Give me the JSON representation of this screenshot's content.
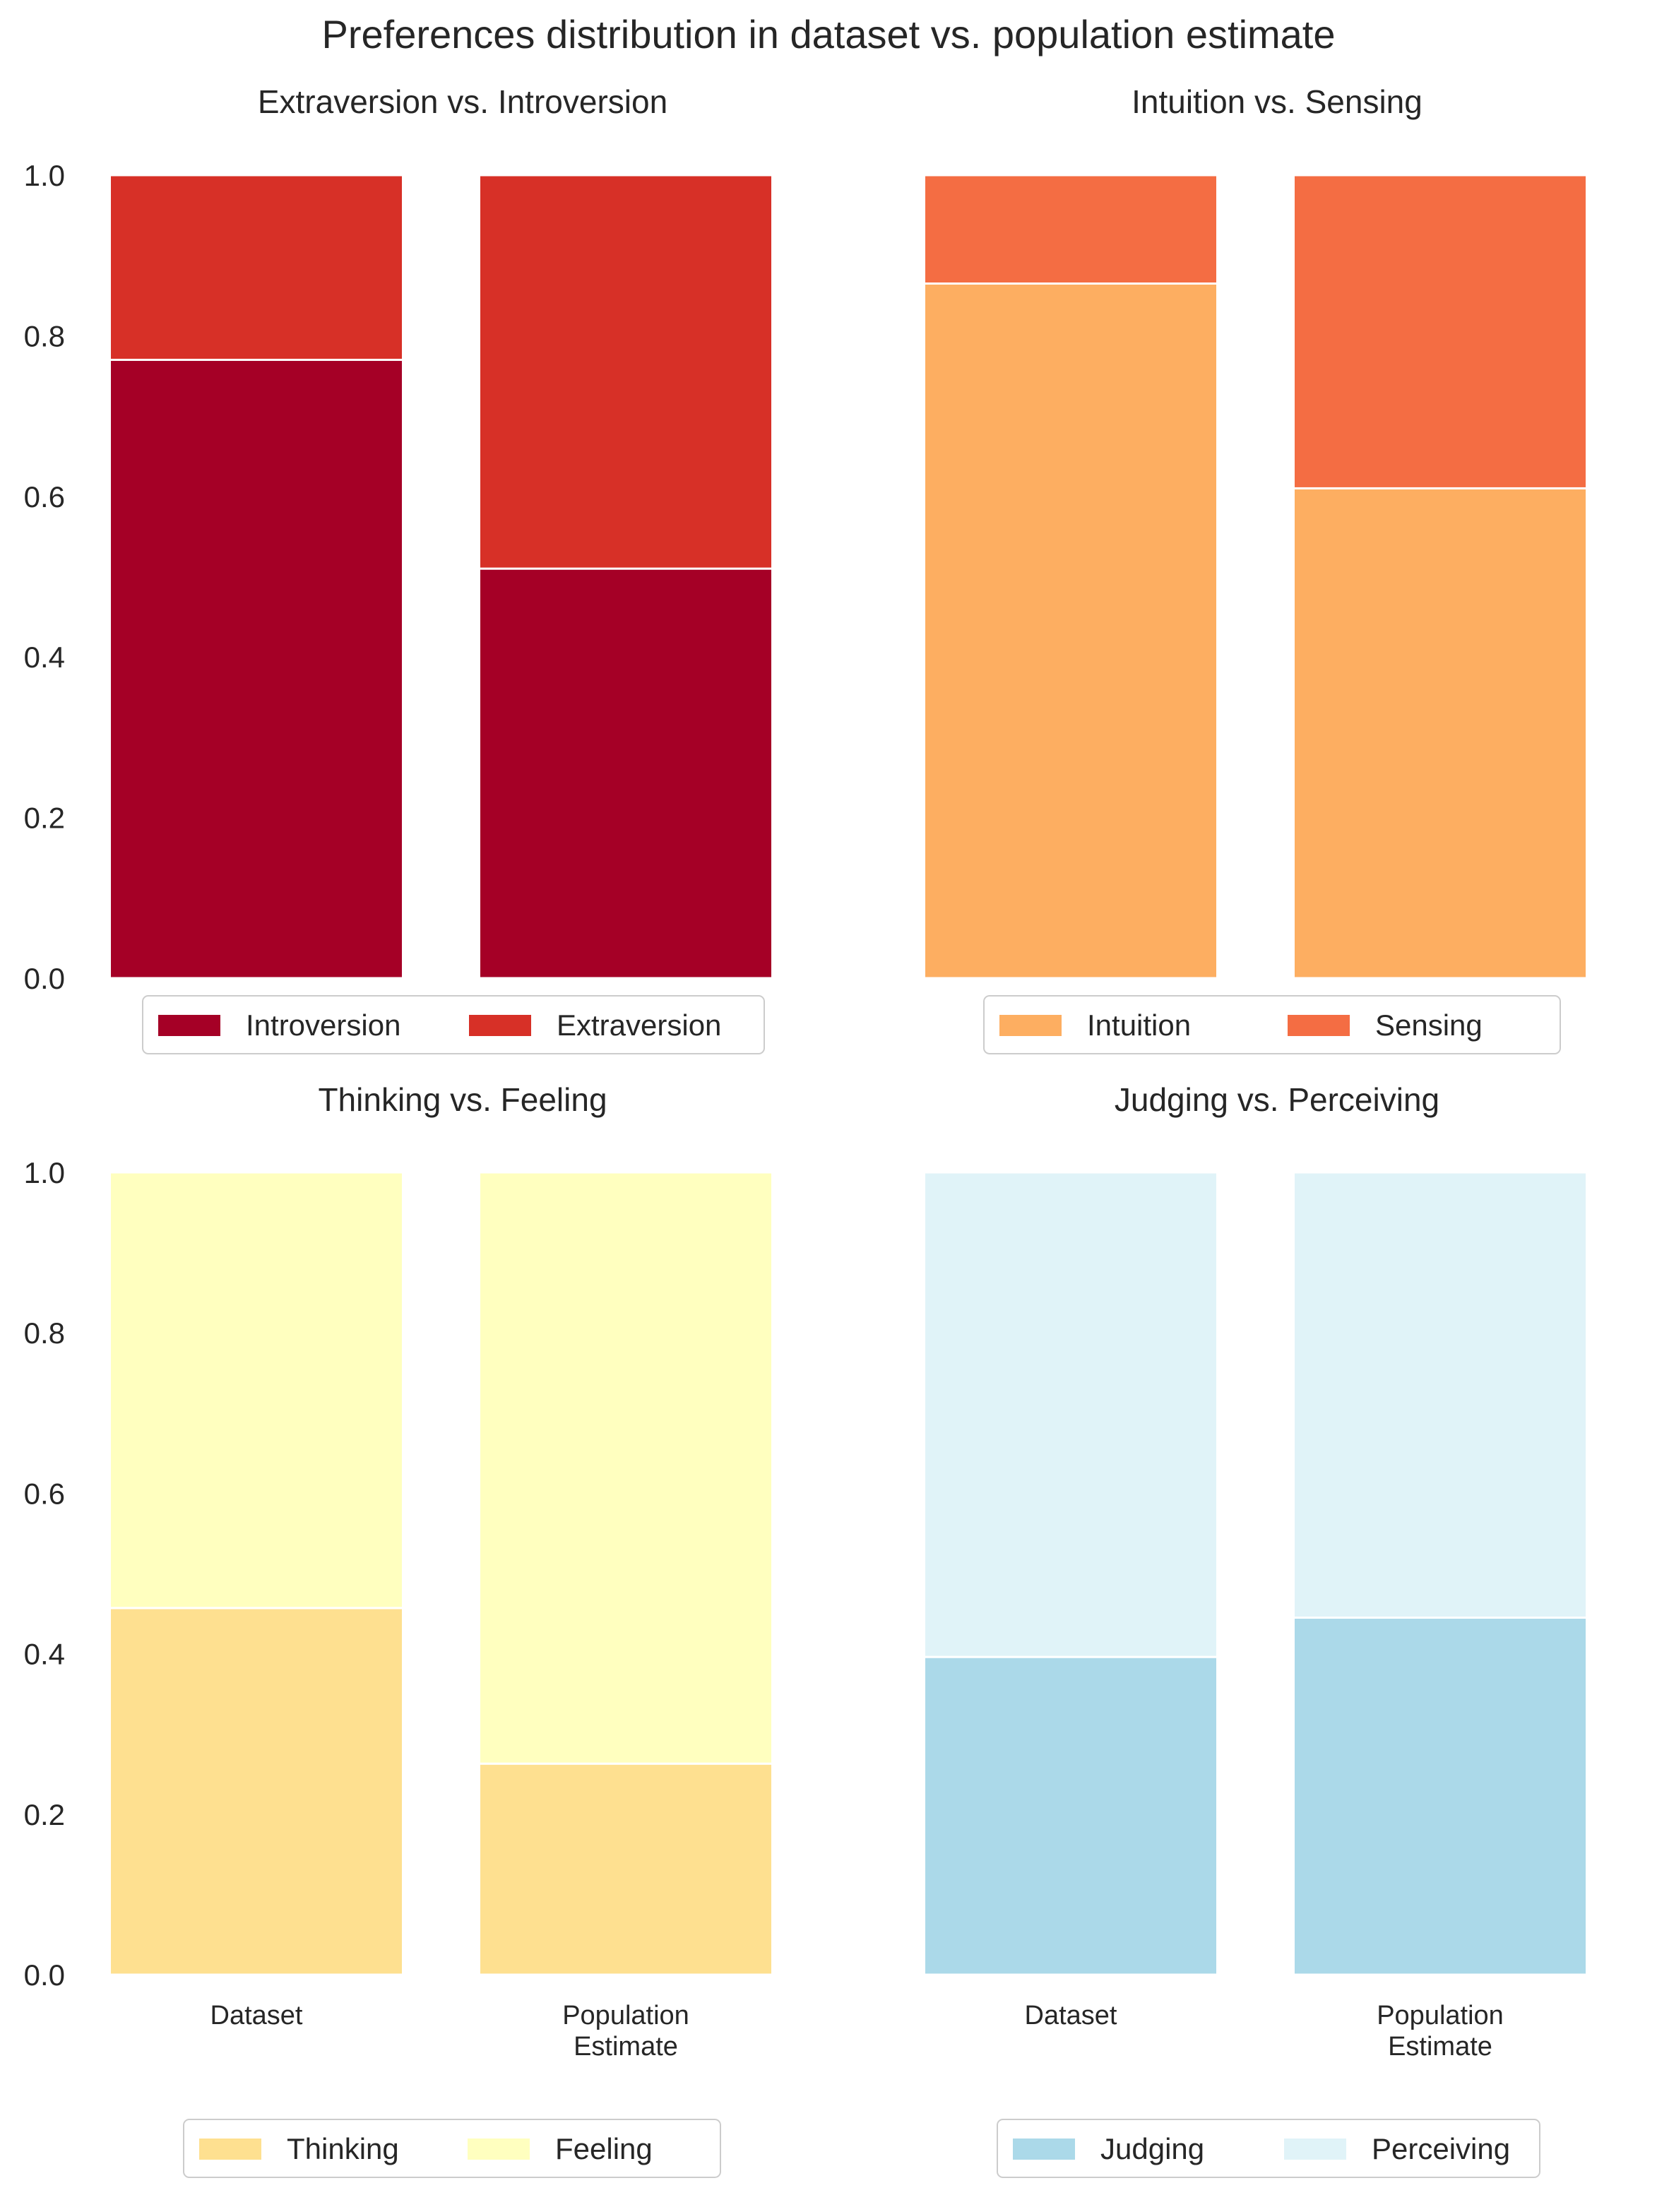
{
  "figure": {
    "title": "Preferences distribution in dataset vs. population estimate"
  },
  "chart_data": [
    {
      "type": "bar",
      "stacked": true,
      "title": "Extraversion vs. Introversion",
      "categories": [
        "Dataset",
        "Population\nEstimate"
      ],
      "show_category_labels": false,
      "ylim": [
        0,
        1.0
      ],
      "yticks": [
        "0.0",
        "0.2",
        "0.4",
        "0.6",
        "0.8",
        "1.0"
      ],
      "grid": false,
      "legend": "below",
      "series": [
        {
          "name": "Introversion",
          "values": [
            0.77,
            0.51
          ],
          "color": "#a50026"
        },
        {
          "name": "Extraversion",
          "values": [
            0.23,
            0.49
          ],
          "color": "#d73027"
        }
      ]
    },
    {
      "type": "bar",
      "stacked": true,
      "title": "Intuition vs. Sensing",
      "categories": [
        "Dataset",
        "Population\nEstimate"
      ],
      "show_category_labels": false,
      "ylim": [
        0,
        1.0
      ],
      "yticks": [],
      "grid": false,
      "legend": "below",
      "series": [
        {
          "name": "Intuition",
          "values": [
            0.865,
            0.61
          ],
          "color": "#fdae61"
        },
        {
          "name": "Sensing",
          "values": [
            0.135,
            0.39
          ],
          "color": "#f46d43"
        }
      ]
    },
    {
      "type": "bar",
      "stacked": true,
      "title": "Thinking vs. Feeling",
      "categories": [
        "Dataset",
        "Population\nEstimate"
      ],
      "show_category_labels": true,
      "ylim": [
        0,
        1.0
      ],
      "yticks": [
        "0.0",
        "0.2",
        "0.4",
        "0.6",
        "0.8",
        "1.0"
      ],
      "grid": false,
      "legend": "below",
      "series": [
        {
          "name": "Thinking",
          "values": [
            0.457,
            0.263
          ],
          "color": "#fee090"
        },
        {
          "name": "Feeling",
          "values": [
            0.543,
            0.737
          ],
          "color": "#ffffbf"
        }
      ]
    },
    {
      "type": "bar",
      "stacked": true,
      "title": "Judging vs. Perceiving",
      "categories": [
        "Dataset",
        "Population\nEstimate"
      ],
      "show_category_labels": true,
      "ylim": [
        0,
        1.0
      ],
      "yticks": [],
      "grid": false,
      "legend": "below",
      "series": [
        {
          "name": "Judging",
          "values": [
            0.396,
            0.445
          ],
          "color": "#abd9e9"
        },
        {
          "name": "Perceiving",
          "values": [
            0.604,
            0.555
          ],
          "color": "#e0f3f8"
        }
      ]
    }
  ]
}
